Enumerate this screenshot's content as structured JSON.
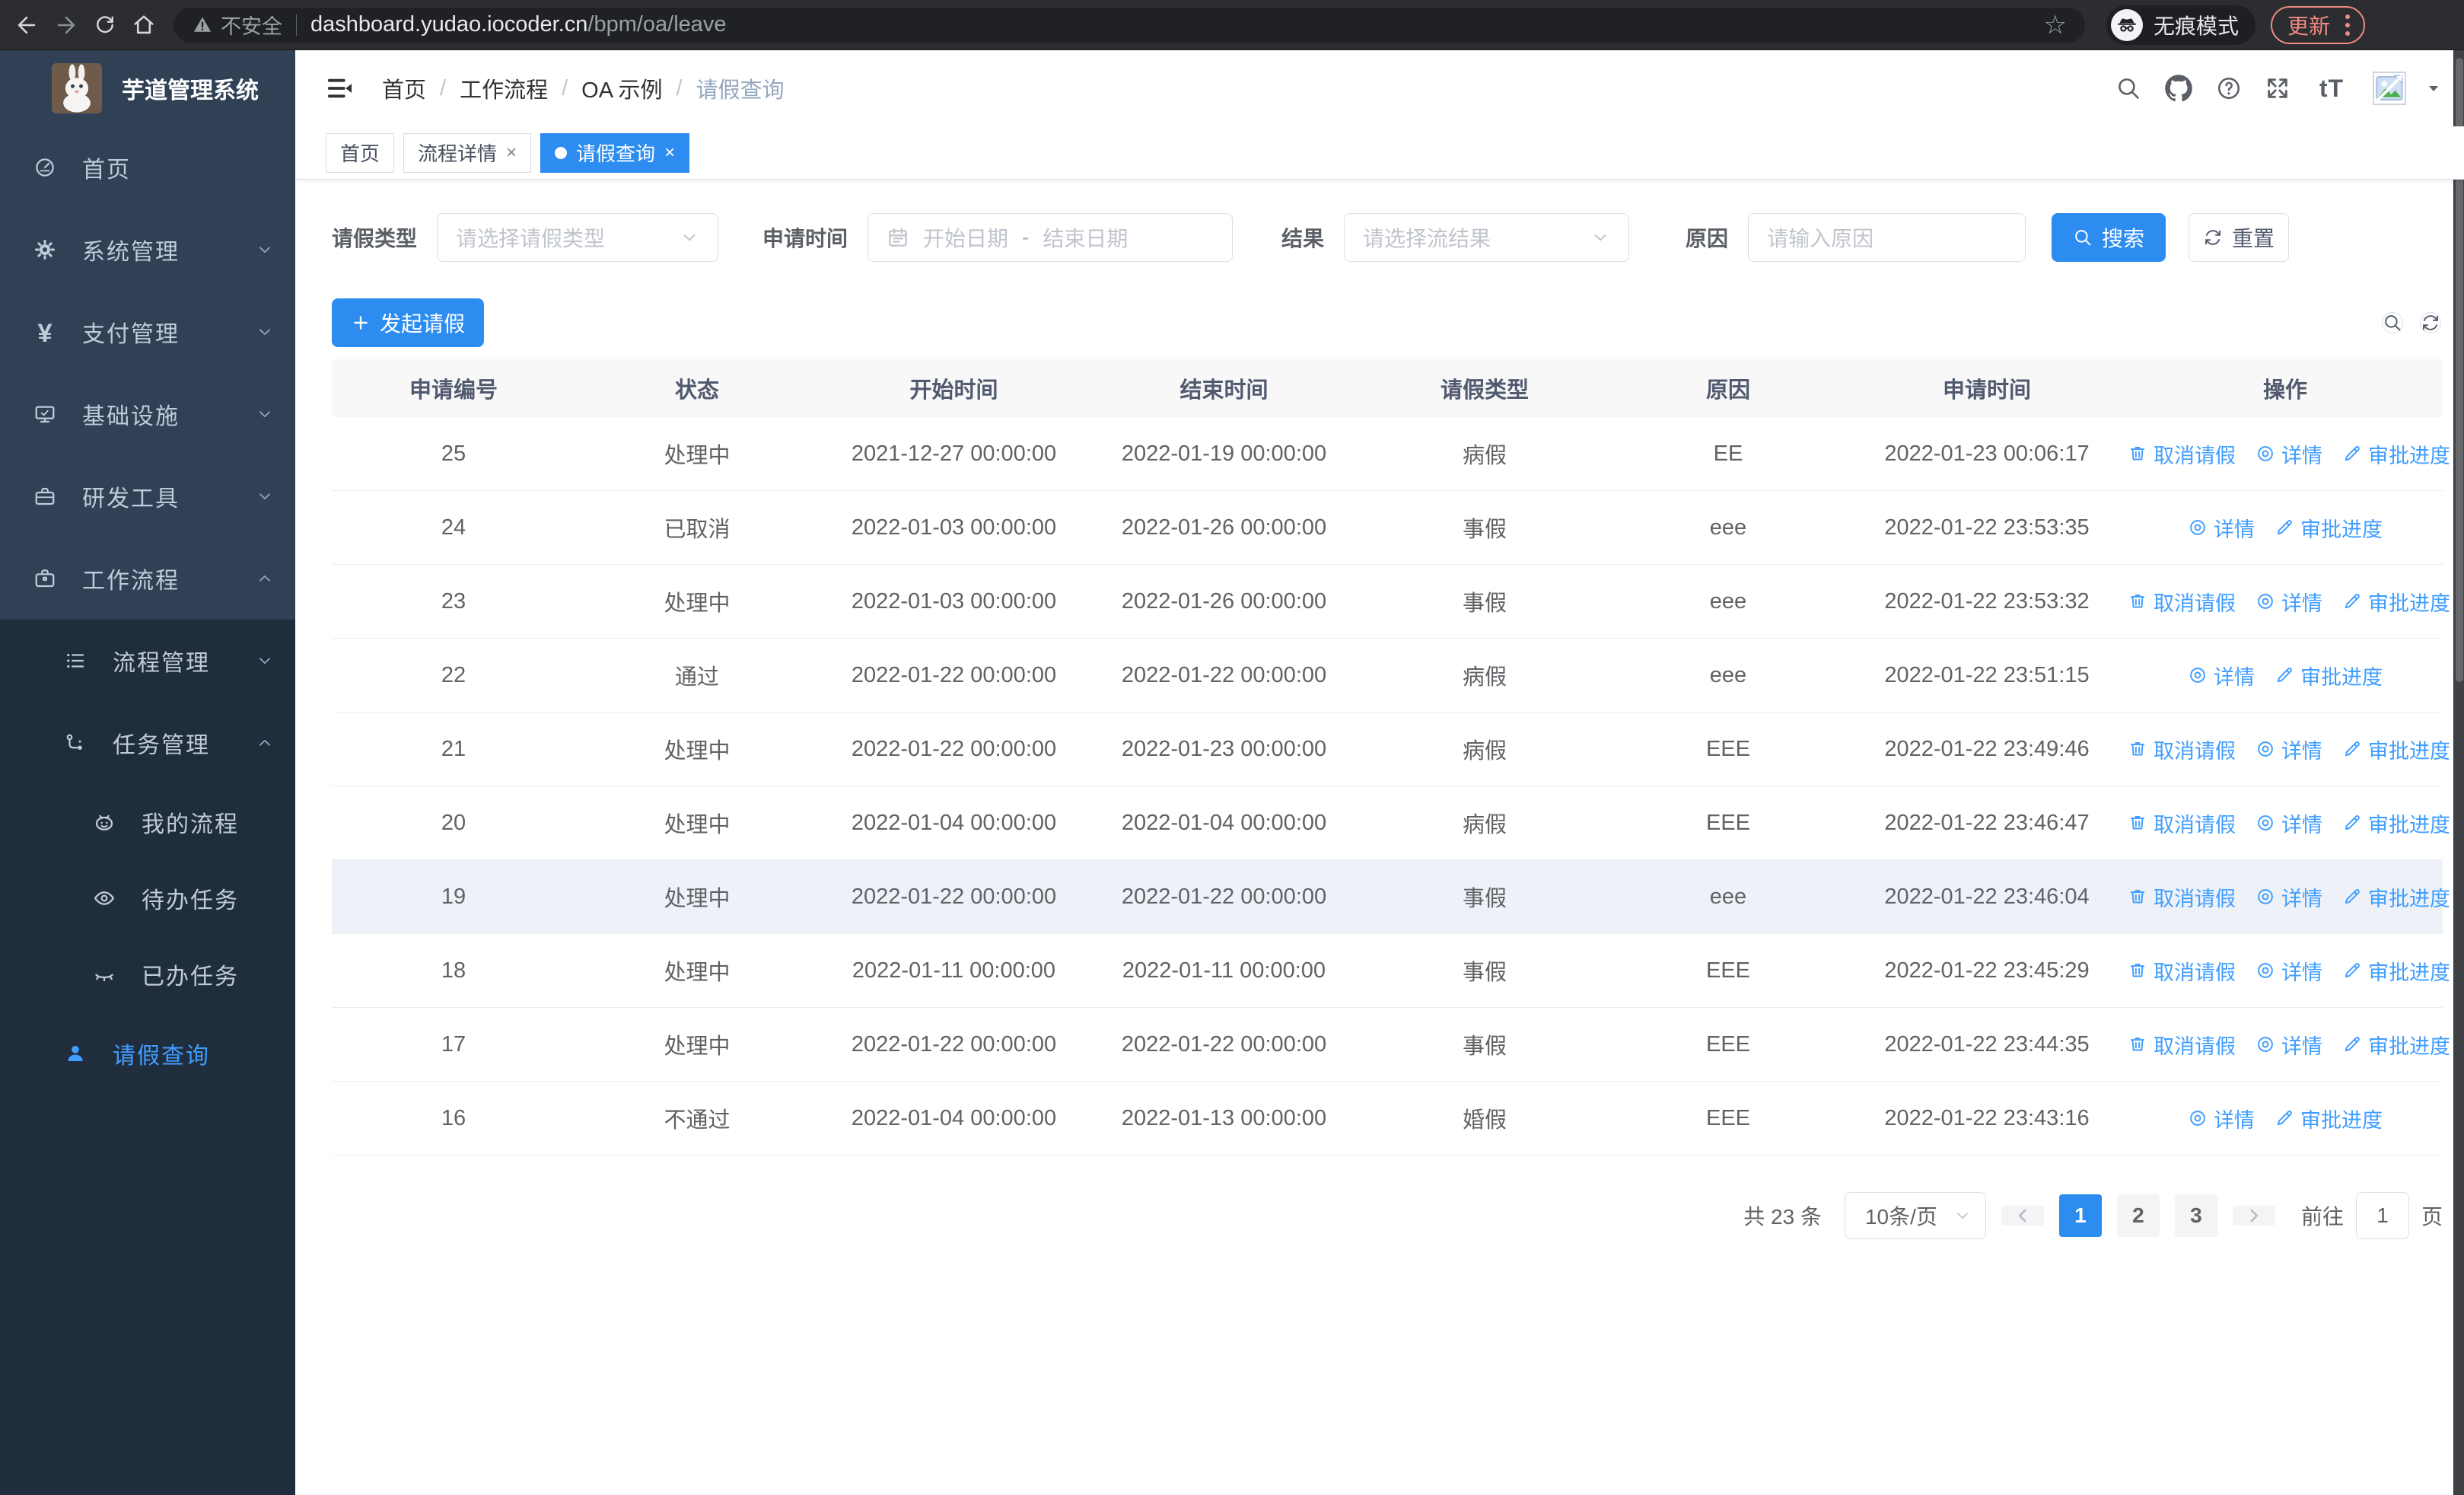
{
  "colors": {
    "accent": "#2d8cf0",
    "link": "#409eff",
    "sidebar_bg": "#304156",
    "submenu_bg": "#1f2d3d"
  },
  "browser": {
    "security_label": "不安全",
    "url_domain": "dashboard.yudao.iocoder.cn",
    "url_path": "/bpm/oa/leave",
    "incognito_label": "无痕模式",
    "update_label": "更新"
  },
  "sidebar": {
    "app_title": "芋道管理系统",
    "menu": [
      {
        "label": "首页",
        "icon": "dashboard",
        "level": 1
      },
      {
        "label": "系统管理",
        "icon": "gear",
        "level": 1,
        "arrow": "down"
      },
      {
        "label": "支付管理",
        "icon": "yen",
        "level": 1,
        "arrow": "down"
      },
      {
        "label": "基础设施",
        "icon": "monitor",
        "level": 1,
        "arrow": "down"
      },
      {
        "label": "研发工具",
        "icon": "toolbox",
        "level": 1,
        "arrow": "down"
      },
      {
        "label": "工作流程",
        "icon": "briefcase",
        "level": 1,
        "arrow": "up"
      },
      {
        "label": "流程管理",
        "icon": "tree-list",
        "level": 2,
        "arrow": "down",
        "dark": true
      },
      {
        "label": "任务管理",
        "icon": "flow",
        "level": 2,
        "arrow": "up",
        "dark": true
      },
      {
        "label": "我的流程",
        "icon": "face",
        "level": 3,
        "dark": true
      },
      {
        "label": "待办任务",
        "icon": "eye",
        "level": 3,
        "dark": true
      },
      {
        "label": "已办任务",
        "icon": "eye-closed",
        "level": 3,
        "dark": true
      },
      {
        "label": "请假查询",
        "icon": "user",
        "level": 2,
        "dark": true,
        "active": true
      }
    ]
  },
  "breadcrumb": {
    "items": [
      "首页",
      "工作流程",
      "OA 示例",
      "请假查询"
    ]
  },
  "tabs": [
    {
      "label": "首页"
    },
    {
      "label": "流程详情",
      "closable": true
    },
    {
      "label": "请假查询",
      "closable": true,
      "active": true
    }
  ],
  "filters": {
    "leave_type": {
      "label": "请假类型",
      "placeholder": "请选择请假类型"
    },
    "apply_time": {
      "label": "申请时间",
      "start_placeholder": "开始日期",
      "separator": "-",
      "end_placeholder": "结束日期"
    },
    "result": {
      "label": "结果",
      "placeholder": "请选择流结果"
    },
    "reason": {
      "label": "原因",
      "placeholder": "请输入原因"
    },
    "search_label": "搜索",
    "reset_label": "重置"
  },
  "toolbar": {
    "create_label": "发起请假"
  },
  "table": {
    "columns": [
      "申请编号",
      "状态",
      "开始时间",
      "结束时间",
      "请假类型",
      "原因",
      "申请时间",
      "操作"
    ],
    "action_labels": {
      "cancel": "取消请假",
      "detail": "详情",
      "progress": "审批进度"
    },
    "rows": [
      {
        "id": "25",
        "status": "处理中",
        "start": "2021-12-27 00:00:00",
        "end": "2022-01-19 00:00:00",
        "type": "病假",
        "reason": "EE",
        "applied": "2022-01-23 00:06:17",
        "actions": [
          "cancel",
          "detail",
          "progress"
        ]
      },
      {
        "id": "24",
        "status": "已取消",
        "start": "2022-01-03 00:00:00",
        "end": "2022-01-26 00:00:00",
        "type": "事假",
        "reason": "eee",
        "applied": "2022-01-22 23:53:35",
        "actions": [
          "detail",
          "progress"
        ]
      },
      {
        "id": "23",
        "status": "处理中",
        "start": "2022-01-03 00:00:00",
        "end": "2022-01-26 00:00:00",
        "type": "事假",
        "reason": "eee",
        "applied": "2022-01-22 23:53:32",
        "actions": [
          "cancel",
          "detail",
          "progress"
        ]
      },
      {
        "id": "22",
        "status": "通过",
        "start": "2022-01-22 00:00:00",
        "end": "2022-01-22 00:00:00",
        "type": "病假",
        "reason": "eee",
        "applied": "2022-01-22 23:51:15",
        "actions": [
          "detail",
          "progress"
        ]
      },
      {
        "id": "21",
        "status": "处理中",
        "start": "2022-01-22 00:00:00",
        "end": "2022-01-23 00:00:00",
        "type": "病假",
        "reason": "EEE",
        "applied": "2022-01-22 23:49:46",
        "actions": [
          "cancel",
          "detail",
          "progress"
        ]
      },
      {
        "id": "20",
        "status": "处理中",
        "start": "2022-01-04 00:00:00",
        "end": "2022-01-04 00:00:00",
        "type": "病假",
        "reason": "EEE",
        "applied": "2022-01-22 23:46:47",
        "actions": [
          "cancel",
          "detail",
          "progress"
        ]
      },
      {
        "id": "19",
        "status": "处理中",
        "start": "2022-01-22 00:00:00",
        "end": "2022-01-22 00:00:00",
        "type": "事假",
        "reason": "eee",
        "applied": "2022-01-22 23:46:04",
        "actions": [
          "cancel",
          "detail",
          "progress"
        ],
        "highlighted": true
      },
      {
        "id": "18",
        "status": "处理中",
        "start": "2022-01-11 00:00:00",
        "end": "2022-01-11 00:00:00",
        "type": "事假",
        "reason": "EEE",
        "applied": "2022-01-22 23:45:29",
        "actions": [
          "cancel",
          "detail",
          "progress"
        ]
      },
      {
        "id": "17",
        "status": "处理中",
        "start": "2022-01-22 00:00:00",
        "end": "2022-01-22 00:00:00",
        "type": "事假",
        "reason": "EEE",
        "applied": "2022-01-22 23:44:35",
        "actions": [
          "cancel",
          "detail",
          "progress"
        ]
      },
      {
        "id": "16",
        "status": "不通过",
        "start": "2022-01-04 00:00:00",
        "end": "2022-01-13 00:00:00",
        "type": "婚假",
        "reason": "EEE",
        "applied": "2022-01-22 23:43:16",
        "actions": [
          "detail",
          "progress"
        ]
      }
    ]
  },
  "pagination": {
    "total_label": "共 23 条",
    "page_size_label": "10条/页",
    "pages": [
      "1",
      "2",
      "3"
    ],
    "current_page": "1",
    "goto_label": "前往",
    "goto_value": "1",
    "goto_unit": "页"
  }
}
